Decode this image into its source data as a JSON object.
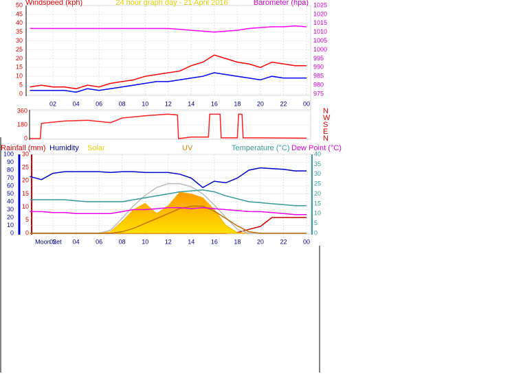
{
  "chart_data": [
    {
      "type": "line",
      "title": "24 hour graph day - 21 April 2016",
      "ylabel": "Windspeed (kph)",
      "y2label": "Barometer (hpa)",
      "x": [
        0,
        1,
        2,
        3,
        4,
        5,
        6,
        7,
        8,
        9,
        10,
        11,
        12,
        13,
        14,
        15,
        16,
        17,
        18,
        19,
        20,
        21,
        22,
        23,
        24
      ],
      "xlim": [
        0,
        24
      ],
      "xticks": [
        {
          "value": 2,
          "label": "02"
        },
        {
          "value": 4,
          "label": "04"
        },
        {
          "value": 6,
          "label": "06"
        },
        {
          "value": 8,
          "label": "08"
        },
        10,
        12,
        14,
        16,
        18,
        20,
        22,
        {
          "value": 24,
          "label": "00"
        }
      ],
      "ylim": [
        0,
        50
      ],
      "yticks": [
        0,
        5,
        10,
        15,
        20,
        25,
        30,
        35,
        40,
        45,
        50
      ],
      "y2lim": [
        975,
        1025
      ],
      "y2ticks": [
        975,
        980,
        985,
        990,
        995,
        1000,
        1005,
        1010,
        1015,
        1020,
        1025
      ],
      "grid": true,
      "series": [
        {
          "color": "#ff0000",
          "values": [
            4,
            5,
            4,
            4,
            3,
            5,
            4,
            6,
            7,
            8,
            10,
            11,
            12,
            13,
            16,
            18,
            22,
            20,
            18,
            17,
            15,
            18,
            17,
            16,
            16
          ]
        },
        {
          "color": "#0000ff",
          "values": [
            2,
            2,
            2,
            2,
            1,
            3,
            2,
            3,
            4,
            5,
            6,
            7,
            7,
            8,
            9,
            10,
            12,
            11,
            10,
            9,
            8,
            10,
            9,
            9,
            9
          ]
        },
        {
          "color": "#ff00ff",
          "axis": "y2",
          "values": [
            1012,
            1012,
            1012,
            1012,
            1012,
            1012,
            1012,
            1012,
            1012,
            1012,
            1012,
            1012,
            1012,
            1011.5,
            1011,
            1010.5,
            1010,
            1010.5,
            1011,
            1012,
            1012.5,
            1013,
            1013,
            1013.5,
            1013
          ]
        }
      ]
    },
    {
      "type": "line",
      "x": [
        0,
        0.9,
        1,
        3,
        5,
        7,
        8,
        10,
        12,
        12.8,
        12.9,
        14,
        15.5,
        15.6,
        16.5,
        16.6,
        18,
        18.1,
        18.4,
        18.5,
        20,
        24
      ],
      "xlim": [
        0,
        24
      ],
      "ylim": [
        0,
        360
      ],
      "yticks": [
        0,
        180,
        360
      ],
      "y2lim": [
        0,
        360
      ],
      "y2ticks": [
        {
          "value": 0,
          "label": "N"
        },
        {
          "value": 90,
          "label": "E"
        },
        {
          "value": 180,
          "label": "S"
        },
        {
          "value": 270,
          "label": "W"
        },
        {
          "value": 360,
          "label": "N"
        }
      ],
      "grid": true,
      "series": [
        {
          "color": "#ff2020",
          "values": [
            0,
            0,
            200,
            230,
            240,
            210,
            270,
            300,
            320,
            310,
            0,
            20,
            20,
            320,
            320,
            10,
            10,
            320,
            320,
            10,
            10,
            5
          ]
        }
      ]
    },
    {
      "type": "line",
      "x": [
        0,
        1,
        2,
        3,
        4,
        5,
        6,
        7,
        8,
        9,
        10,
        11,
        12,
        13,
        14,
        15,
        16,
        17,
        18,
        19,
        20,
        21,
        22,
        23,
        24
      ],
      "xlim": [
        0,
        24
      ],
      "xticks": [
        {
          "value": 2,
          "label": "02"
        },
        {
          "value": 4,
          "label": "04"
        },
        {
          "value": 6,
          "label": "06"
        },
        {
          "value": 8,
          "label": "08"
        },
        10,
        12,
        14,
        16,
        18,
        20,
        22,
        {
          "value": 24,
          "label": "00"
        }
      ],
      "ylim": [
        0,
        100
      ],
      "yticks": [
        0,
        10,
        20,
        30,
        40,
        50,
        60,
        70,
        80,
        90,
        100
      ],
      "y2lim": [
        0,
        40
      ],
      "y2ticks": [
        0,
        5,
        10,
        15,
        20,
        25,
        30,
        35,
        40
      ],
      "y3lim": [
        0,
        30
      ],
      "y3ticks": [
        0,
        5,
        10,
        15,
        20,
        25,
        30
      ],
      "y4lim": [
        0,
        1000
      ],
      "y5lim": [
        0,
        16
      ],
      "grid": true,
      "annotations": [
        {
          "text": "Moon Set",
          "x": 1.6
        }
      ],
      "series": [
        {
          "name": "Rainfall (mm)",
          "color": "#cc0000",
          "axis": "y3",
          "values": [
            0,
            0,
            0,
            0,
            0,
            0,
            0,
            0,
            0,
            0,
            0,
            0,
            0,
            0,
            0,
            0,
            0,
            0,
            0.3,
            1.5,
            2.6,
            6,
            6,
            6,
            6
          ]
        },
        {
          "name": "Humidity",
          "color": "#0000cc",
          "values": [
            72,
            68,
            76,
            78,
            78,
            78,
            78,
            77,
            78,
            78,
            77,
            77,
            77,
            75,
            70,
            58,
            66,
            64,
            70,
            80,
            83,
            82,
            81,
            79,
            79
          ]
        },
        {
          "name": "Solar",
          "color": "#ffb000",
          "axis": "y4",
          "fill": true,
          "values": [
            0,
            0,
            0,
            0,
            0,
            0,
            0,
            20,
            150,
            300,
            380,
            250,
            350,
            520,
            500,
            450,
            300,
            100,
            10,
            0,
            0,
            0,
            0,
            0,
            0
          ]
        },
        {
          "color": "#bbbbbb",
          "axis": "y4",
          "values": [
            0,
            0,
            0,
            0,
            0,
            0,
            0,
            40,
            190,
            350,
            480,
            580,
            630,
            630,
            590,
            500,
            360,
            200,
            50,
            0,
            0,
            0,
            0,
            0,
            0
          ]
        },
        {
          "name": "UV",
          "color": "#c07000",
          "axis": "y5",
          "values": [
            0,
            0,
            0,
            0,
            0,
            0,
            0,
            0,
            0.3,
            1,
            2,
            3,
            4,
            5,
            5.5,
            5.5,
            4.5,
            3,
            1.5,
            0.3,
            0,
            0,
            0,
            0,
            0
          ]
        },
        {
          "name": "Temperature (°C)",
          "color": "#339999",
          "axis": "y2",
          "values": [
            17,
            17,
            17,
            17,
            16.5,
            16,
            16,
            16,
            16,
            17,
            18,
            19,
            20,
            21,
            21.5,
            22,
            21,
            19,
            17.5,
            16,
            15.5,
            15,
            14.5,
            14,
            14
          ]
        },
        {
          "name": "Dew Point (°C)",
          "color": "#ee00ee",
          "axis": "y2",
          "values": [
            11,
            11,
            10.5,
            10.5,
            10,
            10,
            10,
            10,
            11,
            12,
            12,
            12.5,
            13,
            13,
            12.5,
            13,
            12.5,
            12,
            11.5,
            11,
            11,
            10.5,
            10,
            9.5,
            9.5
          ]
        }
      ]
    }
  ]
}
